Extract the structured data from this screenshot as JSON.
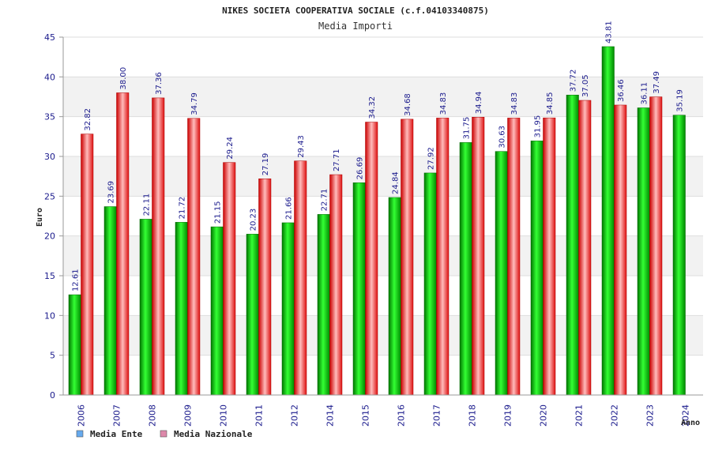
{
  "chart_data": {
    "type": "bar",
    "title": "NIKES SOCIETA COOPERATIVA SOCIALE (c.f.04103340875)",
    "subtitle": "Media Importi",
    "xlabel": "Anno",
    "ylabel": "Euro",
    "ylim": [
      0,
      45
    ],
    "ytick_step": 5,
    "grid": true,
    "legend_position": "bottom-left",
    "categories": [
      "2006",
      "2007",
      "2008",
      "2009",
      "2010",
      "2011",
      "2012",
      "2014",
      "2015",
      "2016",
      "2017",
      "2018",
      "2019",
      "2020",
      "2021",
      "2022",
      "2023",
      "2024"
    ],
    "series": [
      {
        "name": "Media Ente",
        "color": "#00bb00",
        "legend_color": "#66aaee",
        "values": [
          12.61,
          23.69,
          22.11,
          21.72,
          21.15,
          20.23,
          21.66,
          22.71,
          26.69,
          24.84,
          27.92,
          31.75,
          30.63,
          31.95,
          37.72,
          43.81,
          36.11,
          35.19
        ],
        "labels": [
          "12.61",
          "23.69",
          "22.11",
          "21.72",
          "21.15",
          "20.23",
          "21.66",
          "22.71",
          "26.69",
          "24.84",
          "27.92",
          "31.75",
          "30.63",
          "31.95",
          "37.72",
          "43.81",
          "36.11",
          "35.19"
        ]
      },
      {
        "name": "Media Nazionale",
        "color": "#ee2222",
        "legend_color": "#dd88aa",
        "values": [
          32.82,
          38.0,
          37.36,
          34.79,
          29.24,
          27.19,
          29.43,
          27.71,
          34.32,
          34.68,
          34.83,
          34.94,
          34.83,
          34.85,
          37.05,
          36.46,
          37.49,
          null
        ],
        "labels": [
          "32.82",
          "38.00",
          "37.36",
          "34.79",
          "29.24",
          "27.19",
          "29.43",
          "27.71",
          "34.32",
          "34.68",
          "34.83",
          "34.94",
          "34.83",
          "34.85",
          "37.05",
          "36.46",
          "37.49",
          ""
        ]
      }
    ]
  }
}
